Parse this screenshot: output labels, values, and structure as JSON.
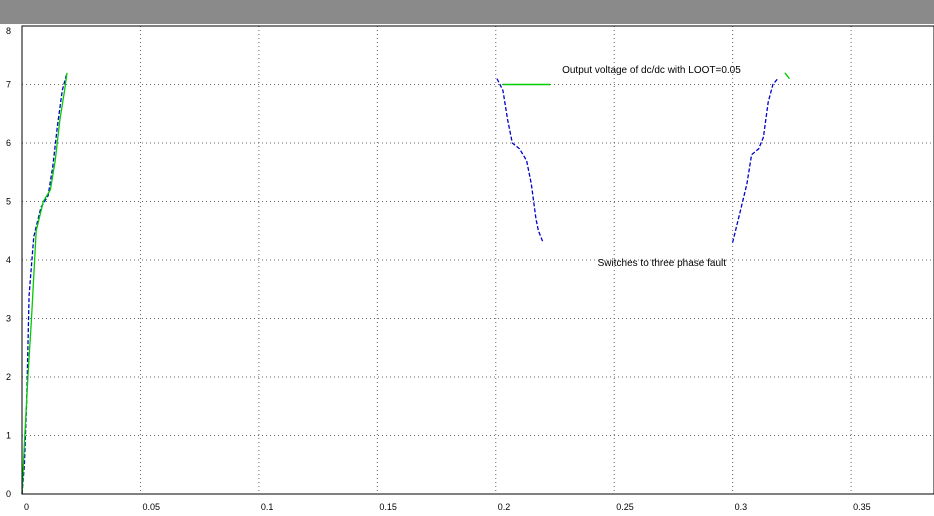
{
  "window": {
    "titlebar_color": "#8a8a8a"
  },
  "chart_data": {
    "type": "line",
    "title": "",
    "xlabel": "",
    "ylabel": "",
    "xlim": [
      0,
      0.385
    ],
    "ylim": [
      0,
      8
    ],
    "grid": true,
    "x_ticks": [
      {
        "value": 0,
        "label": "0"
      },
      {
        "value": 0.05,
        "label": "0.05"
      },
      {
        "value": 0.1,
        "label": "0.1"
      },
      {
        "value": 0.15,
        "label": "0.15"
      },
      {
        "value": 0.2,
        "label": "0.2"
      },
      {
        "value": 0.25,
        "label": "0.25"
      },
      {
        "value": 0.3,
        "label": "0.3"
      },
      {
        "value": 0.35,
        "label": "0.35"
      }
    ],
    "y_ticks": [
      {
        "value": 0,
        "label": "0"
      },
      {
        "value": 1,
        "label": "1"
      },
      {
        "value": 2,
        "label": "2"
      },
      {
        "value": 3,
        "label": "3"
      },
      {
        "value": 4,
        "label": "4"
      },
      {
        "value": 5,
        "label": "5"
      },
      {
        "value": 6,
        "label": "6"
      },
      {
        "value": 7,
        "label": "7"
      },
      {
        "value": 8,
        "label": "8"
      }
    ],
    "series": [
      {
        "color": "#0000cc",
        "style": "dashed",
        "segments": [
          [
            [
              0.0,
              0.0
            ],
            [
              0.001,
              0.5
            ],
            [
              0.002,
              1.6
            ],
            [
              0.003,
              3.4
            ],
            [
              0.005,
              4.4
            ],
            [
              0.008,
              4.9
            ],
            [
              0.011,
              5.1
            ],
            [
              0.013,
              5.6
            ],
            [
              0.015,
              6.3
            ],
            [
              0.017,
              6.9
            ],
            [
              0.019,
              7.2
            ]
          ],
          [
            [
              0.2005,
              7.1
            ],
            [
              0.203,
              6.9
            ],
            [
              0.205,
              6.4
            ],
            [
              0.207,
              6.0
            ],
            [
              0.21,
              5.9
            ],
            [
              0.213,
              5.7
            ],
            [
              0.215,
              5.3
            ],
            [
              0.217,
              4.7
            ],
            [
              0.218,
              4.5
            ],
            [
              0.22,
              4.3
            ]
          ],
          [
            [
              0.3,
              4.3
            ],
            [
              0.303,
              4.8
            ],
            [
              0.306,
              5.3
            ],
            [
              0.308,
              5.8
            ],
            [
              0.311,
              5.9
            ],
            [
              0.313,
              6.1
            ],
            [
              0.315,
              6.7
            ],
            [
              0.317,
              7.0
            ],
            [
              0.319,
              7.1
            ]
          ]
        ]
      },
      {
        "color": "#00cc00",
        "style": "solid",
        "segments": [
          [
            [
              0.0,
              0.0
            ],
            [
              0.0012,
              1.0
            ],
            [
              0.0025,
              2.0
            ],
            [
              0.004,
              3.0
            ],
            [
              0.006,
              4.5
            ],
            [
              0.009,
              5.0
            ],
            [
              0.012,
              5.2
            ],
            [
              0.014,
              5.7
            ],
            [
              0.016,
              6.4
            ],
            [
              0.018,
              6.9
            ],
            [
              0.019,
              7.2
            ]
          ],
          [
            [
              0.322,
              7.2
            ],
            [
              0.324,
              7.1
            ]
          ]
        ]
      }
    ],
    "annotations": [
      {
        "text": "Output voltage of dc/dc with LOOT=0.05",
        "x": 0.228,
        "y": 7.2
      },
      {
        "text": "Switches to three phase fault",
        "x": 0.243,
        "y": 3.9
      }
    ],
    "annotation_line": {
      "color": "#00cc00",
      "from": [
        0.203,
        7.0
      ],
      "to": [
        0.223,
        7.0
      ]
    }
  }
}
